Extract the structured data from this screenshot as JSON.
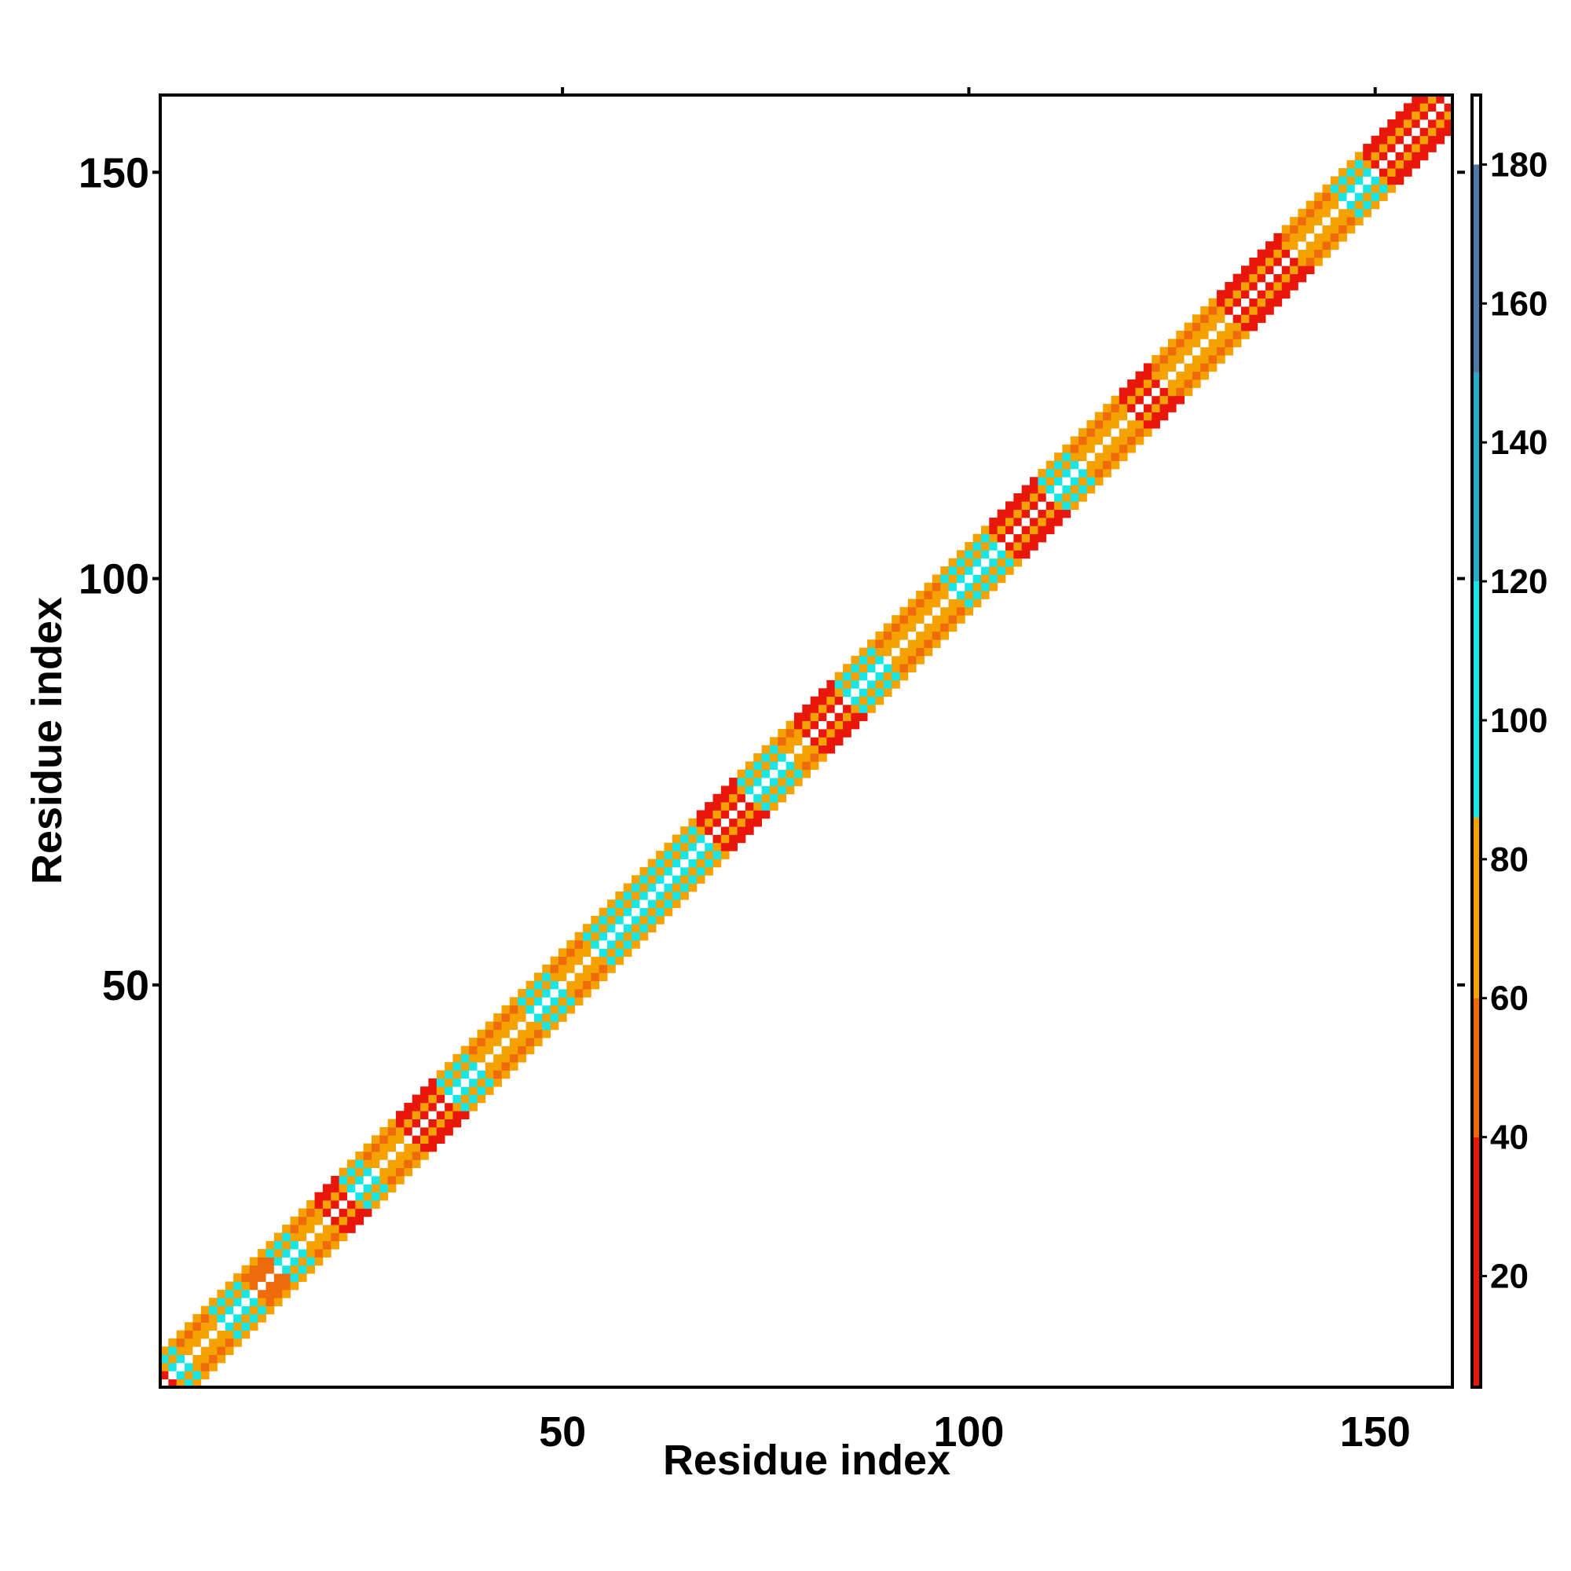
{
  "chart_data": {
    "type": "heatmap",
    "title": "",
    "xlabel": "Residue index",
    "ylabel": "Residue index",
    "xlim": [
      1,
      159
    ],
    "ylim": [
      1,
      159
    ],
    "x_ticks": [
      50,
      100,
      150
    ],
    "y_ticks": [
      50,
      100,
      150
    ],
    "grid": false,
    "colorbar": {
      "range": [
        4,
        190
      ],
      "ticks": [
        20,
        40,
        60,
        80,
        100,
        120,
        140,
        160,
        180
      ],
      "segments": [
        {
          "from": 4,
          "to": 40,
          "color": "#e8170a"
        },
        {
          "from": 40,
          "to": 60,
          "color": "#ef6a0a"
        },
        {
          "from": 60,
          "to": 86,
          "color": "#f5a100"
        },
        {
          "from": 86,
          "to": 120,
          "color": "#18e6e6"
        },
        {
          "from": 120,
          "to": 150,
          "color": "#2aa9c9"
        },
        {
          "from": 150,
          "to": 180,
          "color": "#4e7aa8"
        },
        {
          "from": 180,
          "to": 190,
          "color": "#ffffff"
        }
      ]
    },
    "description_bands": {
      "diagonal_value": 190,
      "offsets": [
        1,
        2,
        3,
        4
      ],
      "offset_scale": [
        1.0,
        0.8,
        0.6,
        0.45
      ]
    },
    "residue_profile": [
      {
        "start": 1,
        "end": 2,
        "value": 20
      },
      {
        "start": 3,
        "end": 4,
        "value": 110
      },
      {
        "start": 5,
        "end": 8,
        "value": 65
      },
      {
        "start": 9,
        "end": 12,
        "value": 110
      },
      {
        "start": 13,
        "end": 15,
        "value": 48
      },
      {
        "start": 16,
        "end": 18,
        "value": 110
      },
      {
        "start": 19,
        "end": 21,
        "value": 65
      },
      {
        "start": 22,
        "end": 24,
        "value": 20
      },
      {
        "start": 25,
        "end": 27,
        "value": 110
      },
      {
        "start": 28,
        "end": 31,
        "value": 65
      },
      {
        "start": 32,
        "end": 36,
        "value": 20
      },
      {
        "start": 37,
        "end": 40,
        "value": 110
      },
      {
        "start": 41,
        "end": 46,
        "value": 65
      },
      {
        "start": 47,
        "end": 50,
        "value": 110
      },
      {
        "start": 51,
        "end": 54,
        "value": 65
      },
      {
        "start": 55,
        "end": 68,
        "value": 110
      },
      {
        "start": 69,
        "end": 73,
        "value": 20
      },
      {
        "start": 74,
        "end": 78,
        "value": 110
      },
      {
        "start": 79,
        "end": 80,
        "value": 65
      },
      {
        "start": 81,
        "end": 85,
        "value": 20
      },
      {
        "start": 86,
        "end": 90,
        "value": 110
      },
      {
        "start": 91,
        "end": 98,
        "value": 65
      },
      {
        "start": 99,
        "end": 104,
        "value": 110
      },
      {
        "start": 105,
        "end": 110,
        "value": 20
      },
      {
        "start": 111,
        "end": 114,
        "value": 110
      },
      {
        "start": 115,
        "end": 120,
        "value": 65
      },
      {
        "start": 121,
        "end": 124,
        "value": 20
      },
      {
        "start": 125,
        "end": 132,
        "value": 65
      },
      {
        "start": 133,
        "end": 140,
        "value": 20
      },
      {
        "start": 141,
        "end": 146,
        "value": 65
      },
      {
        "start": 147,
        "end": 150,
        "value": 110
      },
      {
        "start": 151,
        "end": 159,
        "value": 20
      }
    ]
  }
}
